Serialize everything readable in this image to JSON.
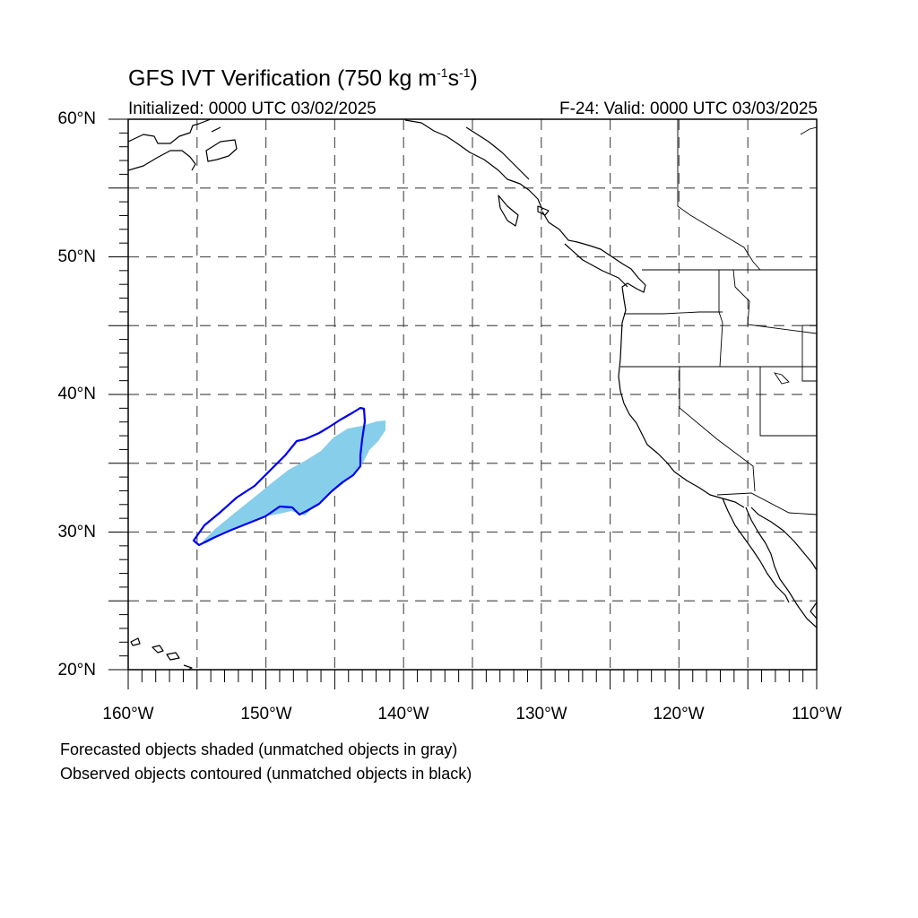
{
  "title": {
    "main": "GFS IVT Verification (750 kg m",
    "sup1": "-1",
    "mid": "s",
    "sup2": "-1",
    "end": ")"
  },
  "initialized": "Initialized: 0000 UTC 03/02/2025",
  "valid": "F-24: Valid: 0000 UTC 03/03/2025",
  "map": {
    "projection": "cylindrical equidistant",
    "lon_range": [
      -160,
      -110
    ],
    "lat_range": [
      20,
      60
    ],
    "gridlines": "dashed every 5 degrees",
    "lat_labels": [
      "60°N",
      "50°N",
      "40°N",
      "30°N",
      "20°N"
    ],
    "lon_labels": [
      "160°W",
      "150°W",
      "140°W",
      "130°W",
      "120°W",
      "110°W"
    ],
    "colors": {
      "forecast_fill": "#87ceeb",
      "observed_contour": "#0000ee",
      "coastline": "#000000",
      "gridline": "#555555"
    },
    "forecast_object": {
      "label": "Forecasted object (matched, shaded)",
      "approx_extent": {
        "lon": [
          -154.5,
          -141.5
        ],
        "lat": [
          29.5,
          38.5
        ]
      }
    },
    "observed_object": {
      "label": "Observed object (matched, contoured)",
      "approx_extent": {
        "lon": [
          -155,
          -143
        ],
        "lat": [
          29,
          39
        ]
      }
    }
  },
  "notes": [
    "Forecasted objects shaded (unmatched objects in gray)",
    "Observed objects contoured (unmatched objects in black)"
  ]
}
